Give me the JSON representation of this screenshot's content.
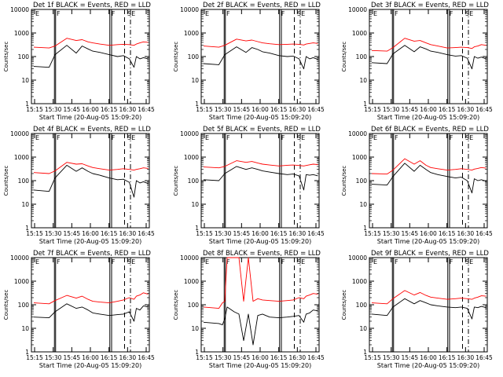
{
  "figure": {
    "y_axis_label": "Counts/sec",
    "x_axis_label": "Start Time (20-Aug-05 15:09:20)",
    "colors": {
      "events": "#000000",
      "lld": "#ff0000"
    }
  },
  "chart_data": [
    {
      "type": "line",
      "title": "Det 1f BLACK = Events, RED = LLD",
      "xlabel": "Start Time (20-Aug-05 15:09:20)",
      "ylabel": "Counts/sec",
      "x_ticks": [
        "15:15",
        "15:30",
        "15:45",
        "16:00",
        "16:15",
        "16:30",
        "16:45"
      ],
      "y_ticks": [
        "1",
        "10",
        "100",
        "1000",
        "10000"
      ],
      "ylim": [
        1,
        10000
      ],
      "y_scale": "log",
      "flags": [
        "E",
        "F",
        "F",
        "SE"
      ],
      "series": [
        {
          "x": [
            2,
            15,
            20,
            30,
            38,
            43,
            48,
            52,
            58,
            66,
            73,
            78,
            83,
            87,
            89,
            92,
            95,
            99
          ],
          "values": [
            38,
            35,
            120,
            300,
            140,
            280,
            210,
            170,
            150,
            120,
            100,
            110,
            80,
            35,
            100,
            80,
            90,
            80
          ]
        },
        {
          "x": [
            2,
            15,
            20,
            30,
            38,
            43,
            48,
            52,
            58,
            66,
            73,
            78,
            83,
            87,
            89,
            92,
            95,
            99
          ],
          "values": [
            250,
            230,
            280,
            600,
            480,
            520,
            420,
            380,
            340,
            300,
            320,
            330,
            320,
            300,
            340,
            380,
            420,
            400
          ]
        }
      ]
    },
    {
      "type": "line",
      "title": "Det 2f BLACK = Events, RED = LLD",
      "xlabel": "Start Time (20-Aug-05 15:09:20)",
      "ylabel": "Counts/sec",
      "x_ticks": [
        "15:15",
        "15:30",
        "15:45",
        "16:00",
        "16:15",
        "16:30",
        "16:45"
      ],
      "y_ticks": [
        "1",
        "10",
        "100",
        "1000",
        "10000"
      ],
      "ylim": [
        1,
        10000
      ],
      "y_scale": "log",
      "flags": [
        "E",
        "F",
        "F",
        "SE"
      ],
      "series": [
        {
          "x": [
            2,
            15,
            20,
            30,
            38,
            43,
            48,
            52,
            58,
            66,
            73,
            78,
            83,
            87,
            89,
            92,
            95,
            99
          ],
          "values": [
            50,
            45,
            120,
            260,
            150,
            240,
            200,
            160,
            140,
            110,
            100,
            105,
            80,
            30,
            100,
            80,
            90,
            75
          ]
        },
        {
          "x": [
            2,
            15,
            20,
            30,
            38,
            43,
            48,
            52,
            58,
            66,
            73,
            78,
            83,
            87,
            89,
            92,
            95,
            99
          ],
          "values": [
            280,
            250,
            300,
            550,
            460,
            500,
            430,
            380,
            350,
            320,
            330,
            340,
            330,
            310,
            340,
            360,
            380,
            360
          ]
        }
      ]
    },
    {
      "type": "line",
      "title": "Det 3f BLACK = Events, RED = LLD",
      "xlabel": "Start Time (20-Aug-05 15:09:20)",
      "ylabel": "Counts/sec",
      "x_ticks": [
        "15:15",
        "15:30",
        "15:45",
        "16:00",
        "16:15",
        "16:30",
        "16:45"
      ],
      "y_ticks": [
        "1",
        "10",
        "100",
        "1000",
        "10000"
      ],
      "ylim": [
        1,
        10000
      ],
      "y_scale": "log",
      "flags": [
        "E",
        "F",
        "F",
        "SE"
      ],
      "series": [
        {
          "x": [
            2,
            15,
            20,
            30,
            38,
            43,
            48,
            52,
            58,
            66,
            73,
            78,
            83,
            87,
            89,
            92,
            95,
            99
          ],
          "values": [
            55,
            50,
            130,
            300,
            160,
            260,
            210,
            170,
            150,
            120,
            105,
            110,
            85,
            30,
            100,
            85,
            95,
            80
          ]
        },
        {
          "x": [
            2,
            15,
            20,
            30,
            38,
            43,
            48,
            52,
            58,
            66,
            73,
            78,
            83,
            87,
            89,
            92,
            95,
            99
          ],
          "values": [
            180,
            170,
            240,
            600,
            450,
            480,
            380,
            320,
            280,
            230,
            240,
            250,
            240,
            220,
            260,
            280,
            320,
            300
          ]
        }
      ]
    },
    {
      "type": "line",
      "title": "Det 4f BLACK = Events, RED = LLD",
      "xlabel": "Start Time (20-Aug-05 15:09:20)",
      "ylabel": "Counts/sec",
      "x_ticks": [
        "15:15",
        "15:30",
        "15:45",
        "16:00",
        "16:15",
        "16:30",
        "16:45"
      ],
      "y_ticks": [
        "1",
        "10",
        "100",
        "1000",
        "10000"
      ],
      "ylim": [
        1,
        10000
      ],
      "y_scale": "log",
      "flags": [
        "E",
        "F",
        "F",
        "SE"
      ],
      "series": [
        {
          "x": [
            2,
            15,
            20,
            30,
            38,
            43,
            48,
            52,
            58,
            66,
            73,
            78,
            83,
            87,
            89,
            92,
            95,
            99
          ],
          "values": [
            40,
            35,
            130,
            450,
            250,
            350,
            250,
            200,
            170,
            130,
            110,
            115,
            85,
            20,
            100,
            80,
            90,
            75
          ]
        },
        {
          "x": [
            2,
            15,
            20,
            30,
            38,
            43,
            48,
            52,
            58,
            66,
            73,
            78,
            83,
            87,
            89,
            92,
            95,
            99
          ],
          "values": [
            220,
            200,
            260,
            600,
            500,
            520,
            420,
            360,
            320,
            280,
            300,
            320,
            300,
            280,
            300,
            320,
            350,
            330
          ]
        }
      ]
    },
    {
      "type": "line",
      "title": "Det 5f BLACK = Events, RED = LLD",
      "xlabel": "Start Time (20-Aug-05 15:09:20)",
      "ylabel": "Counts/sec",
      "x_ticks": [
        "15:15",
        "15:30",
        "15:45",
        "16:00",
        "16:15",
        "16:30",
        "16:45"
      ],
      "y_ticks": [
        "1",
        "10",
        "100",
        "1000",
        "10000"
      ],
      "ylim": [
        1,
        10000
      ],
      "y_scale": "log",
      "flags": [
        "E",
        "F",
        "F",
        "SE"
      ],
      "series": [
        {
          "x": [
            2,
            15,
            20,
            30,
            38,
            43,
            48,
            52,
            58,
            66,
            73,
            78,
            83,
            87,
            89,
            92,
            95,
            99
          ],
          "values": [
            110,
            100,
            200,
            400,
            300,
            350,
            300,
            260,
            230,
            200,
            180,
            190,
            160,
            40,
            180,
            170,
            180,
            160
          ]
        },
        {
          "x": [
            2,
            15,
            20,
            30,
            38,
            43,
            48,
            52,
            58,
            66,
            73,
            78,
            83,
            87,
            89,
            92,
            95,
            99
          ],
          "values": [
            380,
            350,
            400,
            700,
            600,
            650,
            560,
            500,
            460,
            420,
            450,
            460,
            440,
            420,
            440,
            470,
            500,
            480
          ]
        }
      ]
    },
    {
      "type": "line",
      "title": "Det 6f BLACK = Events, RED = LLD",
      "xlabel": "Start Time (20-Aug-05 15:09:20)",
      "ylabel": "Counts/sec",
      "x_ticks": [
        "15:15",
        "15:30",
        "15:45",
        "16:00",
        "16:15",
        "16:30",
        "16:45"
      ],
      "y_ticks": [
        "1",
        "10",
        "100",
        "1000",
        "10000"
      ],
      "ylim": [
        1,
        10000
      ],
      "y_scale": "log",
      "flags": [
        "E",
        "F",
        "F",
        "SE"
      ],
      "series": [
        {
          "x": [
            2,
            15,
            20,
            30,
            38,
            43,
            48,
            52,
            58,
            66,
            73,
            78,
            83,
            87,
            89,
            92,
            95,
            99
          ],
          "values": [
            70,
            65,
            150,
            550,
            250,
            450,
            300,
            220,
            180,
            150,
            130,
            140,
            100,
            30,
            120,
            100,
            110,
            95
          ]
        },
        {
          "x": [
            2,
            15,
            20,
            30,
            38,
            43,
            48,
            52,
            58,
            66,
            73,
            78,
            83,
            87,
            89,
            92,
            95,
            99
          ],
          "values": [
            200,
            190,
            280,
            850,
            500,
            700,
            450,
            360,
            320,
            280,
            300,
            320,
            300,
            280,
            310,
            330,
            360,
            340
          ]
        }
      ]
    },
    {
      "type": "line",
      "title": "Det 7f BLACK = Events, RED = LLD",
      "xlabel": "Start Time (20-Aug-05 15:09:20)",
      "ylabel": "Counts/sec",
      "x_ticks": [
        "15:15",
        "15:30",
        "15:45",
        "16:00",
        "16:15",
        "16:30",
        "16:45"
      ],
      "y_ticks": [
        "1",
        "10",
        "100",
        "1000",
        "10000"
      ],
      "ylim": [
        1,
        10000
      ],
      "y_scale": "log",
      "flags": [
        "E",
        "F",
        "F",
        "SE"
      ],
      "series": [
        {
          "x": [
            2,
            15,
            20,
            30,
            38,
            43,
            48,
            52,
            58,
            66,
            73,
            78,
            83,
            87,
            89,
            92,
            95,
            99
          ],
          "values": [
            30,
            28,
            50,
            110,
            70,
            80,
            60,
            45,
            40,
            35,
            38,
            40,
            50,
            20,
            70,
            60,
            90,
            80
          ]
        },
        {
          "x": [
            2,
            15,
            20,
            30,
            38,
            43,
            48,
            52,
            58,
            66,
            73,
            78,
            83,
            87,
            89,
            92,
            95,
            99
          ],
          "values": [
            120,
            110,
            150,
            250,
            190,
            230,
            170,
            140,
            130,
            120,
            140,
            160,
            200,
            170,
            230,
            260,
            320,
            280
          ]
        }
      ]
    },
    {
      "type": "line",
      "title": "Det 8f BLACK = Events, RED = LLD",
      "xlabel": "Start Time (20-Aug-05 15:09:20)",
      "ylabel": "Counts/sec",
      "x_ticks": [
        "15:15",
        "15:30",
        "15:45",
        "16:00",
        "16:15",
        "16:30",
        "16:45"
      ],
      "y_ticks": [
        "1",
        "10",
        "100",
        "1000",
        "10000"
      ],
      "ylim": [
        1,
        10000
      ],
      "y_scale": "log",
      "flags": [
        "E",
        "F",
        "F",
        "SE"
      ],
      "series": [
        {
          "x": [
            2,
            15,
            18,
            20,
            22,
            28,
            32,
            36,
            40,
            44,
            48,
            52,
            58,
            66,
            73,
            78,
            83,
            87,
            89,
            92,
            95,
            99
          ],
          "values": [
            18,
            16,
            14,
            25,
            80,
            50,
            40,
            3,
            40,
            2,
            35,
            40,
            30,
            28,
            30,
            32,
            35,
            18,
            40,
            45,
            60,
            55
          ]
        },
        {
          "x": [
            2,
            15,
            18,
            20,
            22,
            28,
            32,
            36,
            40,
            44,
            48,
            52,
            58,
            66,
            73,
            78,
            83,
            87,
            89,
            92,
            95,
            99
          ],
          "values": [
            80,
            70,
            120,
            140,
            10000,
            10000,
            10000,
            140,
            10000,
            140,
            180,
            160,
            150,
            140,
            150,
            160,
            200,
            180,
            230,
            260,
            300,
            280
          ]
        }
      ]
    },
    {
      "type": "line",
      "title": "Det 9f BLACK = Events, RED = LLD",
      "xlabel": "Start Time (20-Aug-05 15:09:20)",
      "ylabel": "Counts/sec",
      "x_ticks": [
        "15:15",
        "15:30",
        "15:45",
        "16:00",
        "16:15",
        "16:30",
        "16:45"
      ],
      "y_ticks": [
        "1",
        "10",
        "100",
        "1000",
        "10000"
      ],
      "ylim": [
        1,
        10000
      ],
      "y_scale": "log",
      "flags": [
        "E",
        "F",
        "F",
        "SE"
      ],
      "series": [
        {
          "x": [
            2,
            15,
            20,
            30,
            38,
            43,
            48,
            52,
            58,
            66,
            73,
            78,
            83,
            87,
            89,
            92,
            95,
            99
          ],
          "values": [
            40,
            35,
            80,
            180,
            110,
            150,
            120,
            100,
            90,
            80,
            75,
            80,
            70,
            25,
            80,
            75,
            85,
            75
          ]
        },
        {
          "x": [
            2,
            15,
            20,
            30,
            38,
            43,
            48,
            52,
            58,
            66,
            73,
            78,
            83,
            87,
            89,
            92,
            95,
            99
          ],
          "values": [
            120,
            110,
            180,
            400,
            260,
            330,
            250,
            210,
            190,
            170,
            180,
            190,
            180,
            170,
            190,
            210,
            240,
            230
          ]
        }
      ]
    }
  ]
}
